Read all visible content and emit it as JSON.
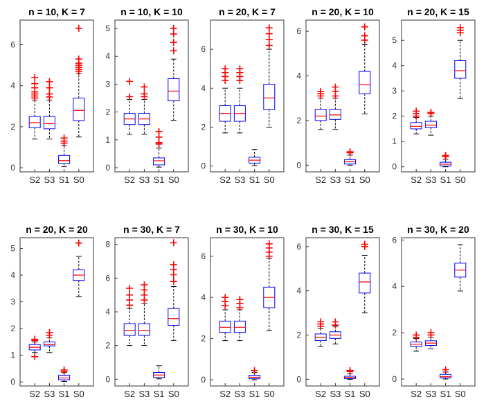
{
  "colors": {
    "box": "#0000ff",
    "median": "#ff0000",
    "outlier": "#ff0000",
    "whisker": "#000000",
    "axis": "#333333"
  },
  "chart_data": [
    {
      "type": "box",
      "title": "n = 10, K = 7",
      "categories": [
        "S2",
        "S3",
        "S1",
        "S0"
      ],
      "ylim": [
        -0.2,
        7.2
      ],
      "yticks": [
        0,
        2,
        4,
        6
      ],
      "grid": false,
      "boxes": [
        {
          "q1": 1.95,
          "median": 2.2,
          "q3": 2.5,
          "whisker_low": 1.4,
          "whisker_high": 3.3,
          "outliers": [
            3.4,
            3.5,
            3.6,
            3.7,
            3.9,
            4.1,
            4.4
          ]
        },
        {
          "q1": 1.9,
          "median": 2.15,
          "q3": 2.5,
          "whisker_low": 1.4,
          "whisker_high": 3.3,
          "outliers": [
            3.45,
            3.6,
            3.9,
            4.2
          ]
        },
        {
          "q1": 0.2,
          "median": 0.35,
          "q3": 0.6,
          "whisker_low": 0.05,
          "whisker_high": 1.1,
          "outliers": [
            1.2,
            1.3,
            1.45
          ]
        },
        {
          "q1": 2.3,
          "median": 2.8,
          "q3": 3.4,
          "whisker_low": 1.5,
          "whisker_high": 4.6,
          "outliers": [
            4.7,
            4.8,
            4.9,
            5.0,
            5.1,
            5.3,
            6.8
          ]
        }
      ]
    },
    {
      "type": "box",
      "title": "n = 10, K = 10",
      "categories": [
        "S2",
        "S3",
        "S1",
        "S0"
      ],
      "ylim": [
        -0.15,
        5.3
      ],
      "yticks": [
        0,
        1,
        2,
        3,
        4,
        5
      ],
      "grid": false,
      "boxes": [
        {
          "q1": 1.55,
          "median": 1.75,
          "q3": 1.95,
          "whisker_low": 1.2,
          "whisker_high": 2.45,
          "outliers": [
            2.55,
            3.1
          ]
        },
        {
          "q1": 1.55,
          "median": 1.75,
          "q3": 1.95,
          "whisker_low": 1.2,
          "whisker_high": 2.45,
          "outliers": [
            2.55,
            2.65,
            2.9
          ]
        },
        {
          "q1": 0.1,
          "median": 0.25,
          "q3": 0.35,
          "whisker_low": 0.02,
          "whisker_high": 0.7,
          "outliers": [
            0.85,
            0.9,
            1.1,
            1.3
          ]
        },
        {
          "q1": 2.4,
          "median": 2.75,
          "q3": 3.2,
          "whisker_low": 1.7,
          "whisker_high": 3.9,
          "outliers": [
            4.2,
            4.5,
            4.8,
            5.0
          ]
        }
      ]
    },
    {
      "type": "box",
      "title": "n = 20, K = 7",
      "categories": [
        "S2",
        "S3",
        "S1",
        "S0"
      ],
      "ylim": [
        -0.3,
        7.5
      ],
      "yticks": [
        0,
        2,
        4,
        6
      ],
      "grid": false,
      "boxes": [
        {
          "q1": 2.3,
          "median": 2.7,
          "q3": 3.1,
          "whisker_low": 1.7,
          "whisker_high": 4.0,
          "outliers": [
            4.4,
            4.6,
            4.8,
            5.0
          ]
        },
        {
          "q1": 2.3,
          "median": 2.7,
          "q3": 3.1,
          "whisker_low": 1.7,
          "whisker_high": 4.0,
          "outliers": [
            4.4,
            4.6,
            4.8,
            5.0
          ]
        },
        {
          "q1": 0.15,
          "median": 0.3,
          "q3": 0.45,
          "whisker_low": 0.02,
          "whisker_high": 0.85,
          "outliers": []
        },
        {
          "q1": 2.9,
          "median": 3.5,
          "q3": 4.2,
          "whisker_low": 2.0,
          "whisker_high": 6.0,
          "outliers": [
            6.2,
            6.5,
            6.8,
            7.1
          ]
        }
      ]
    },
    {
      "type": "box",
      "title": "n = 20, K = 10",
      "categories": [
        "S2",
        "S3",
        "S1",
        "S0"
      ],
      "ylim": [
        -0.3,
        6.5
      ],
      "yticks": [
        0,
        2,
        4,
        6
      ],
      "grid": false,
      "boxes": [
        {
          "q1": 2.0,
          "median": 2.2,
          "q3": 2.5,
          "whisker_low": 1.6,
          "whisker_high": 3.0,
          "outliers": [
            3.1,
            3.2,
            3.3
          ]
        },
        {
          "q1": 2.05,
          "median": 2.25,
          "q3": 2.5,
          "whisker_low": 1.6,
          "whisker_high": 3.0,
          "outliers": [
            3.1,
            3.3,
            3.5
          ]
        },
        {
          "q1": 0.05,
          "median": 0.15,
          "q3": 0.25,
          "whisker_low": 0.0,
          "whisker_high": 0.45,
          "outliers": [
            0.55,
            0.6
          ]
        },
        {
          "q1": 3.2,
          "median": 3.6,
          "q3": 4.2,
          "whisker_low": 2.3,
          "whisker_high": 5.4,
          "outliers": [
            5.6,
            5.8,
            6.2
          ]
        }
      ]
    },
    {
      "type": "box",
      "title": "n = 20, K = 15",
      "categories": [
        "S2",
        "S3",
        "S1",
        "S0"
      ],
      "ylim": [
        -0.2,
        5.8
      ],
      "yticks": [
        0,
        1,
        2,
        3,
        4,
        5
      ],
      "grid": false,
      "boxes": [
        {
          "q1": 1.5,
          "median": 1.6,
          "q3": 1.75,
          "whisker_low": 1.3,
          "whisker_high": 1.95,
          "outliers": [
            2.0,
            2.1,
            2.2
          ]
        },
        {
          "q1": 1.55,
          "median": 1.65,
          "q3": 1.8,
          "whisker_low": 1.25,
          "whisker_high": 2.0,
          "outliers": [
            2.1,
            2.15
          ]
        },
        {
          "q1": 0.03,
          "median": 0.1,
          "q3": 0.18,
          "whisker_low": 0.0,
          "whisker_high": 0.3,
          "outliers": [
            0.4,
            0.45
          ]
        },
        {
          "q1": 3.5,
          "median": 3.8,
          "q3": 4.2,
          "whisker_low": 2.7,
          "whisker_high": 5.0,
          "outliers": [
            5.3,
            5.4,
            5.5
          ]
        }
      ]
    },
    {
      "type": "box",
      "title": "n = 20, K = 20",
      "categories": [
        "S2",
        "S3",
        "S1",
        "S0"
      ],
      "ylim": [
        -0.15,
        5.4
      ],
      "yticks": [
        0,
        1,
        2,
        3,
        4,
        5
      ],
      "grid": false,
      "boxes": [
        {
          "q1": 1.2,
          "median": 1.3,
          "q3": 1.4,
          "whisker_low": 1.1,
          "whisker_high": 1.5,
          "outliers": [
            0.95,
            1.55,
            1.6
          ]
        },
        {
          "q1": 1.35,
          "median": 1.4,
          "q3": 1.5,
          "whisker_low": 1.1,
          "whisker_high": 1.65,
          "outliers": [
            1.75,
            1.85
          ]
        },
        {
          "q1": 0.08,
          "median": 0.15,
          "q3": 0.25,
          "whisker_low": 0.02,
          "whisker_high": 0.35,
          "outliers": [
            0.4,
            0.45
          ]
        },
        {
          "q1": 3.8,
          "median": 4.0,
          "q3": 4.2,
          "whisker_low": 3.2,
          "whisker_high": 4.7,
          "outliers": [
            5.2
          ]
        }
      ]
    },
    {
      "type": "box",
      "title": "n = 30, K = 7",
      "categories": [
        "S2",
        "S3",
        "S1",
        "S0"
      ],
      "ylim": [
        -0.4,
        8.4
      ],
      "yticks": [
        0,
        2,
        4,
        6,
        8
      ],
      "grid": false,
      "boxes": [
        {
          "q1": 2.6,
          "median": 2.9,
          "q3": 3.3,
          "whisker_low": 2.0,
          "whisker_high": 4.2,
          "outliers": [
            4.4,
            4.7,
            5.0,
            5.4
          ]
        },
        {
          "q1": 2.6,
          "median": 2.9,
          "q3": 3.3,
          "whisker_low": 2.0,
          "whisker_high": 4.5,
          "outliers": [
            4.7,
            5.0,
            5.3,
            5.6
          ]
        },
        {
          "q1": 0.1,
          "median": 0.25,
          "q3": 0.4,
          "whisker_low": 0.02,
          "whisker_high": 0.8,
          "outliers": []
        },
        {
          "q1": 3.2,
          "median": 3.6,
          "q3": 4.2,
          "whisker_low": 2.3,
          "whisker_high": 5.5,
          "outliers": [
            5.8,
            6.2,
            6.5,
            6.8,
            8.1
          ]
        }
      ]
    },
    {
      "type": "box",
      "title": "n = 30, K = 10",
      "categories": [
        "S2",
        "S3",
        "S1",
        "S0"
      ],
      "ylim": [
        -0.3,
        6.9
      ],
      "yticks": [
        0,
        2,
        4,
        6
      ],
      "grid": false,
      "boxes": [
        {
          "q1": 2.3,
          "median": 2.55,
          "q3": 2.85,
          "whisker_low": 1.9,
          "whisker_high": 3.4,
          "outliers": [
            3.6,
            3.8,
            4.0
          ]
        },
        {
          "q1": 2.3,
          "median": 2.55,
          "q3": 2.85,
          "whisker_low": 1.9,
          "whisker_high": 3.4,
          "outliers": [
            3.5,
            3.7,
            3.9
          ]
        },
        {
          "q1": 0.05,
          "median": 0.12,
          "q3": 0.22,
          "whisker_low": 0.0,
          "whisker_high": 0.35,
          "outliers": [
            0.45
          ]
        },
        {
          "q1": 3.5,
          "median": 4.0,
          "q3": 4.5,
          "whisker_low": 2.4,
          "whisker_high": 5.9,
          "outliers": [
            6.0,
            6.2,
            6.4,
            6.6
          ]
        }
      ]
    },
    {
      "type": "box",
      "title": "n = 30, K = 15",
      "categories": [
        "S2",
        "S3",
        "S1",
        "S0"
      ],
      "ylim": [
        -0.3,
        6.4
      ],
      "yticks": [
        0,
        2,
        4,
        6
      ],
      "grid": false,
      "boxes": [
        {
          "q1": 1.75,
          "median": 1.9,
          "q3": 2.05,
          "whisker_low": 1.5,
          "whisker_high": 2.3,
          "outliers": [
            2.4,
            2.5,
            2.6
          ]
        },
        {
          "q1": 1.85,
          "median": 2.0,
          "q3": 2.15,
          "whisker_low": 1.6,
          "whisker_high": 2.4,
          "outliers": [
            2.45,
            2.6
          ]
        },
        {
          "q1": 0.03,
          "median": 0.08,
          "q3": 0.14,
          "whisker_low": 0.0,
          "whisker_high": 0.25,
          "outliers": [
            0.35,
            0.4
          ]
        },
        {
          "q1": 3.9,
          "median": 4.4,
          "q3": 4.8,
          "whisker_low": 3.0,
          "whisker_high": 5.6,
          "outliers": [
            6.0,
            6.1
          ]
        }
      ]
    },
    {
      "type": "box",
      "title": "n = 30, K = 20",
      "categories": [
        "S2",
        "S3",
        "S1",
        "S0"
      ],
      "ylim": [
        -0.3,
        6.1
      ],
      "yticks": [
        0,
        2,
        4,
        6
      ],
      "grid": false,
      "boxes": [
        {
          "q1": 1.4,
          "median": 1.5,
          "q3": 1.6,
          "whisker_low": 1.2,
          "whisker_high": 1.75,
          "outliers": [
            1.8,
            1.9
          ]
        },
        {
          "q1": 1.45,
          "median": 1.55,
          "q3": 1.65,
          "whisker_low": 1.3,
          "whisker_high": 1.8,
          "outliers": [
            1.9,
            2.0
          ]
        },
        {
          "q1": 0.05,
          "median": 0.1,
          "q3": 0.2,
          "whisker_low": 0.0,
          "whisker_high": 0.3,
          "outliers": [
            0.4
          ]
        },
        {
          "q1": 4.4,
          "median": 4.7,
          "q3": 5.0,
          "whisker_low": 3.8,
          "whisker_high": 5.8,
          "outliers": []
        }
      ]
    }
  ]
}
